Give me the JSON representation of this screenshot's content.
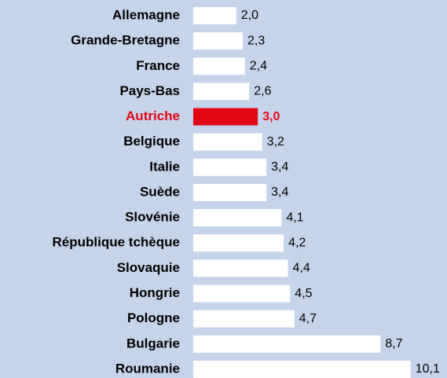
{
  "chart_data": {
    "type": "bar",
    "orientation": "horizontal",
    "categories": [
      "Allemagne",
      "Grande-Bretagne",
      "France",
      "Pays-Bas",
      "Autriche",
      "Belgique",
      "Italie",
      "Suède",
      "Slovénie",
      "République tchèque",
      "Slovaquie",
      "Hongrie",
      "Pologne",
      "Bulgarie",
      "Roumanie"
    ],
    "values": [
      2.0,
      2.3,
      2.4,
      2.6,
      3.0,
      3.2,
      3.4,
      3.4,
      4.1,
      4.2,
      4.4,
      4.5,
      4.7,
      8.7,
      10.1
    ],
    "value_labels": [
      "2,0",
      "2,3",
      "2,4",
      "2,6",
      "3,0",
      "3,2",
      "3,4",
      "3,4",
      "4,1",
      "4,2",
      "4,4",
      "4,5",
      "4,7",
      "8,7",
      "10,1"
    ],
    "bar_colors": [
      "#ffffff",
      "#ffffff",
      "#ffffff",
      "#ffffff",
      "#e30613",
      "#ffffff",
      "#ffffff",
      "#ffffff",
      "#ffffff",
      "#ffffff",
      "#ffffff",
      "#ffffff",
      "#ffffff",
      "#ffffff",
      "#ffffff"
    ],
    "label_colors": [
      "#000000",
      "#000000",
      "#000000",
      "#000000",
      "#e30613",
      "#000000",
      "#000000",
      "#000000",
      "#000000",
      "#000000",
      "#000000",
      "#000000",
      "#000000",
      "#000000",
      "#000000"
    ]
  }
}
